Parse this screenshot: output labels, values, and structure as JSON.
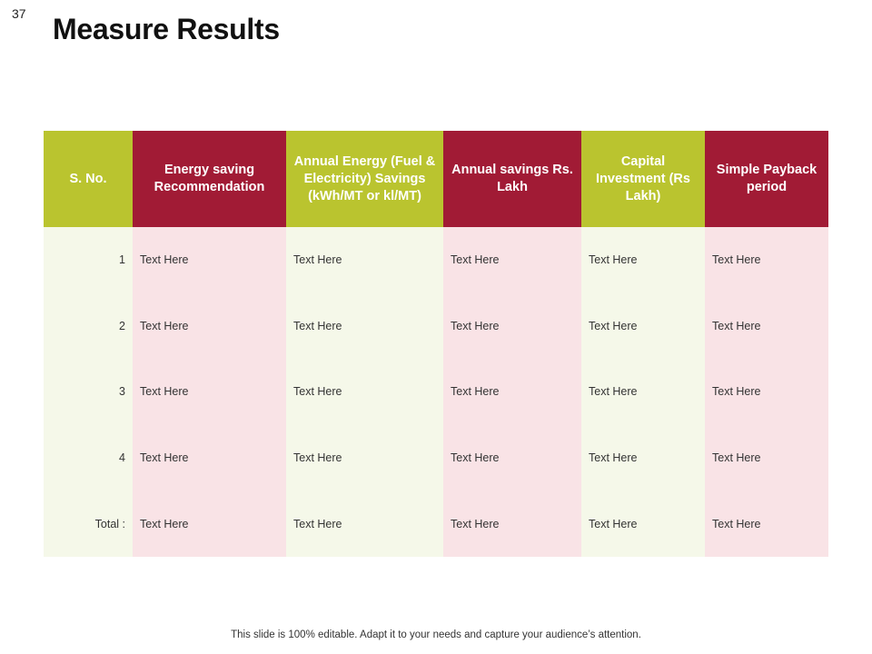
{
  "slide": {
    "number": "37",
    "title": "Measure Results",
    "footer": "This slide is 100% editable. Adapt it to your needs and capture your audience’s attention."
  },
  "colors": {
    "green_header": "#bac42f",
    "red_header": "#a11b35",
    "green_column": "#f5f8e9",
    "red_column": "#f9e3e6"
  },
  "table": {
    "headers": [
      "S. No.",
      "Energy saving Recommendation",
      "Annual Energy (Fuel & Electricity) Savings (kWh/MT or kl/MT)",
      "Annual savings Rs. Lakh",
      "Capital Investment (Rs Lakh)",
      "Simple Payback period"
    ],
    "rows": [
      [
        "1",
        "Text Here",
        "Text Here",
        "Text Here",
        "Text Here",
        "Text Here"
      ],
      [
        "2",
        "Text Here",
        "Text Here",
        "Text Here",
        "Text Here",
        "Text Here"
      ],
      [
        "3",
        "Text Here",
        "Text Here",
        "Text Here",
        "Text Here",
        "Text Here"
      ],
      [
        "4",
        "Text Here",
        "Text Here",
        "Text Here",
        "Text Here",
        "Text Here"
      ],
      [
        "Total :",
        "Text Here",
        "Text Here",
        "Text Here",
        "Text Here",
        "Text Here"
      ]
    ]
  }
}
